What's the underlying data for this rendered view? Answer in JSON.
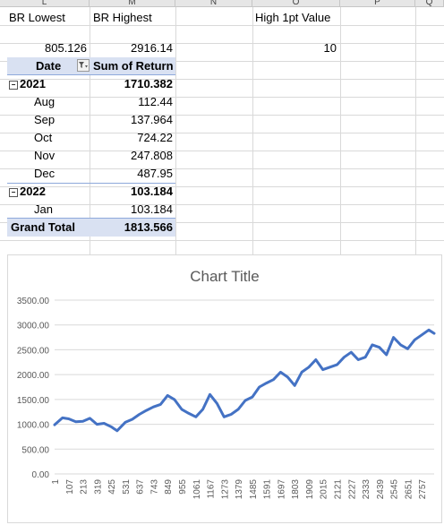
{
  "column_headers": [
    "L",
    "M",
    "N",
    "O",
    "P",
    "Q"
  ],
  "cells": {
    "br_lowest_label": "BR Lowest",
    "br_highest_label": "BR Highest",
    "high_1pt_label": "High 1pt Value",
    "br_lowest_value": "805.126",
    "br_highest_value": "2916.14",
    "high_1pt_value": "10"
  },
  "pivot": {
    "row_header": "Date",
    "value_header": "Sum of Return",
    "filter_icon": "filter-dropdown-icon",
    "collapse_icon": "minus-box-icon",
    "rows": [
      {
        "type": "year",
        "label": "2021",
        "value": "1710.382"
      },
      {
        "type": "month",
        "label": "Aug",
        "value": "112.44"
      },
      {
        "type": "month",
        "label": "Sep",
        "value": "137.964"
      },
      {
        "type": "month",
        "label": "Oct",
        "value": "724.22"
      },
      {
        "type": "month",
        "label": "Nov",
        "value": "247.808"
      },
      {
        "type": "month",
        "label": "Dec",
        "value": "487.95"
      },
      {
        "type": "year",
        "label": "2022",
        "value": "103.184"
      },
      {
        "type": "month",
        "label": "Jan",
        "value": "103.184"
      }
    ],
    "grand_total_label": "Grand Total",
    "grand_total_value": "1813.566"
  },
  "colors": {
    "pivot_header": "#d9e1f2",
    "series_line": "#4472c4",
    "grid": "#d9d9d9",
    "axis_text": "#595959"
  },
  "chart_data": {
    "type": "line",
    "title": "Chart Title",
    "xlabel": "",
    "ylabel": "",
    "ylim": [
      0,
      3500
    ],
    "y_ticks": [
      "0.00",
      "500.00",
      "1000.00",
      "1500.00",
      "2000.00",
      "2500.00",
      "3000.00",
      "3500.00"
    ],
    "x_tick_labels": [
      "1",
      "107",
      "213",
      "319",
      "425",
      "531",
      "637",
      "743",
      "849",
      "955",
      "1061",
      "1167",
      "1273",
      "1379",
      "1485",
      "1591",
      "1697",
      "1803",
      "1909",
      "2015",
      "2121",
      "2227",
      "2333",
      "2439",
      "2545",
      "2651",
      "2757"
    ],
    "grid": true,
    "legend": "none",
    "series": [
      {
        "x": [
          1,
          60,
          107,
          160,
          213,
          266,
          319,
          372,
          425,
          470,
          531,
          584,
          637,
          690,
          743,
          796,
          849,
          900,
          955,
          1008,
          1061,
          1114,
          1167,
          1220,
          1273,
          1326,
          1379,
          1432,
          1485,
          1538,
          1591,
          1644,
          1697,
          1750,
          1803,
          1856,
          1909,
          1962,
          2015,
          2068,
          2121,
          2174,
          2227,
          2280,
          2333,
          2386,
          2439,
          2492,
          2545,
          2598,
          2651,
          2704,
          2757,
          2810,
          2850
        ],
        "y": [
          990,
          1130,
          1110,
          1050,
          1060,
          1120,
          1000,
          1020,
          950,
          870,
          1040,
          1100,
          1200,
          1280,
          1350,
          1400,
          1580,
          1500,
          1300,
          1220,
          1150,
          1300,
          1600,
          1420,
          1150,
          1200,
          1300,
          1480,
          1550,
          1750,
          1830,
          1900,
          2050,
          1950,
          1780,
          2050,
          2150,
          2300,
          2100,
          2150,
          2200,
          2350,
          2450,
          2300,
          2350,
          2600,
          2550,
          2400,
          2750,
          2600,
          2520,
          2700,
          2800,
          2900,
          2830
        ]
      }
    ]
  }
}
